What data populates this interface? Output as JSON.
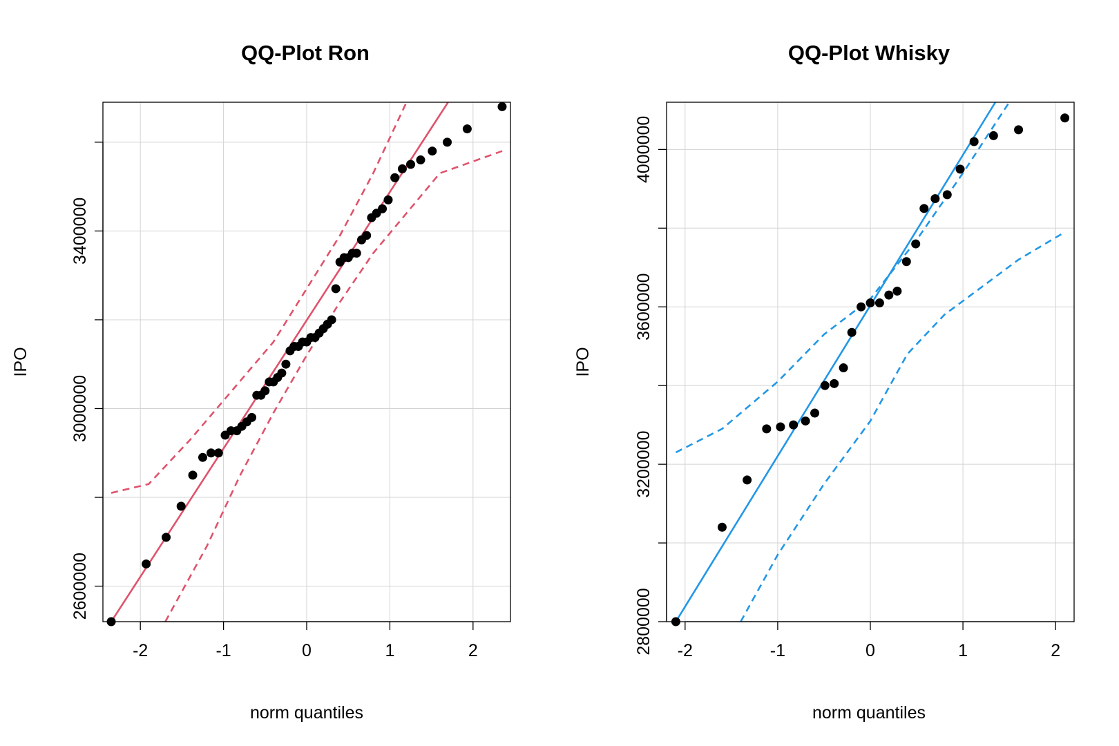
{
  "chart_data": [
    {
      "type": "scatter",
      "title": "QQ-Plot Ron",
      "xlabel": "norm quantiles",
      "ylabel": "IPO",
      "xlim": [
        -2.45,
        2.45
      ],
      "ylim": [
        2520000,
        3690000
      ],
      "x_ticks": [
        -2,
        -1,
        0,
        1,
        2
      ],
      "x_tick_labels": [
        "-2",
        "-1",
        "0",
        "1",
        "2"
      ],
      "y_ticks": [
        2600000,
        3000000,
        3400000
      ],
      "y_tick_labels": [
        "2600000",
        "3000000",
        "3400000"
      ],
      "grid_y": [
        2600000,
        2800000,
        3000000,
        3200000,
        3400000,
        3600000
      ],
      "grid": true,
      "color": "#df536b",
      "point_color": "#000000",
      "reference_line": {
        "x": [
          -2.35,
          1.7
        ],
        "y": [
          2520000,
          3690000
        ]
      },
      "envelope_upper": {
        "x": [
          -2.35,
          -1.9,
          -1.4,
          -0.9,
          -0.4,
          0.0,
          0.4,
          0.8,
          1.2
        ],
        "y": [
          2810000,
          2830000,
          2930000,
          3040000,
          3150000,
          3270000,
          3390000,
          3530000,
          3690000
        ]
      },
      "envelope_lower": {
        "x": [
          -1.7,
          -1.2,
          -0.8,
          -0.4,
          0.0,
          0.4,
          0.8,
          1.2,
          1.6,
          2.35
        ],
        "y": [
          2520000,
          2690000,
          2850000,
          2990000,
          3120000,
          3240000,
          3350000,
          3440000,
          3530000,
          3580000
        ]
      },
      "points": {
        "x": [
          -2.35,
          -1.93,
          -1.69,
          -1.51,
          -1.37,
          -1.25,
          -1.15,
          -1.06,
          -0.98,
          -0.91,
          -0.84,
          -0.78,
          -0.72,
          -0.66,
          -0.6,
          -0.55,
          -0.5,
          -0.45,
          -0.4,
          -0.35,
          -0.3,
          -0.25,
          -0.2,
          -0.15,
          -0.1,
          -0.05,
          0.0,
          0.05,
          0.1,
          0.15,
          0.2,
          0.25,
          0.3,
          0.35,
          0.4,
          0.45,
          0.5,
          0.55,
          0.6,
          0.66,
          0.72,
          0.78,
          0.84,
          0.91,
          0.98,
          1.06,
          1.15,
          1.25,
          1.37,
          1.51,
          1.69,
          1.93,
          2.35
        ],
        "y": [
          2520000,
          2650000,
          2710000,
          2780000,
          2850000,
          2890000,
          2900000,
          2900000,
          2940000,
          2950000,
          2950000,
          2960000,
          2970000,
          2980000,
          3030000,
          3030000,
          3040000,
          3060000,
          3060000,
          3070000,
          3080000,
          3100000,
          3130000,
          3140000,
          3140000,
          3150000,
          3150000,
          3160000,
          3160000,
          3170000,
          3180000,
          3190000,
          3200000,
          3270000,
          3330000,
          3340000,
          3340000,
          3350000,
          3350000,
          3380000,
          3390000,
          3430000,
          3440000,
          3450000,
          3470000,
          3520000,
          3540000,
          3550000,
          3560000,
          3580000,
          3600000,
          3630000,
          3680000
        ]
      }
    },
    {
      "type": "scatter",
      "title": "QQ-Plot Whisky",
      "xlabel": "norm quantiles",
      "ylabel": "IPO",
      "xlim": [
        -2.2,
        2.2
      ],
      "ylim": [
        2800000,
        4120000
      ],
      "x_ticks": [
        -2,
        -1,
        0,
        1,
        2
      ],
      "x_tick_labels": [
        "-2",
        "-1",
        "0",
        "1",
        "2"
      ],
      "y_ticks": [
        2800000,
        3200000,
        3600000,
        4000000
      ],
      "y_tick_labels": [
        "2800000",
        "3200000",
        "3600000",
        "4000000"
      ],
      "grid_y": [
        2800000,
        3000000,
        3200000,
        3400000,
        3600000,
        3800000,
        4000000
      ],
      "grid": true,
      "color": "#2297e6",
      "point_color": "#000000",
      "reference_line": {
        "x": [
          -2.1,
          1.35
        ],
        "y": [
          2800000,
          4120000
        ]
      },
      "envelope_upper": {
        "x": [
          -2.1,
          -1.6,
          -1.0,
          -0.5,
          0.0,
          0.5,
          1.0,
          1.5
        ],
        "y": [
          3230000,
          3290000,
          3410000,
          3530000,
          3620000,
          3770000,
          3940000,
          4120000
        ]
      },
      "envelope_lower": {
        "x": [
          -1.4,
          -1.0,
          -0.5,
          0.0,
          0.4,
          0.8,
          1.2,
          1.6,
          2.1
        ],
        "y": [
          2800000,
          2970000,
          3150000,
          3310000,
          3480000,
          3580000,
          3650000,
          3720000,
          3790000
        ]
      },
      "points": {
        "x": [
          -2.1,
          -1.6,
          -1.33,
          -1.12,
          -0.97,
          -0.83,
          -0.7,
          -0.6,
          -0.49,
          -0.39,
          -0.29,
          -0.2,
          -0.1,
          0.0,
          0.1,
          0.2,
          0.29,
          0.39,
          0.49,
          0.58,
          0.7,
          0.83,
          0.97,
          1.12,
          1.33,
          1.6,
          2.1
        ],
        "y": [
          2780000,
          3040000,
          3160000,
          3290000,
          3295000,
          3300000,
          3310000,
          3330000,
          3400000,
          3405000,
          3445000,
          3535000,
          3600000,
          3610000,
          3610000,
          3630000,
          3640000,
          3715000,
          3760000,
          3850000,
          3875000,
          3885000,
          3950000,
          4020000,
          4035000,
          4050000,
          4080000
        ]
      }
    }
  ]
}
